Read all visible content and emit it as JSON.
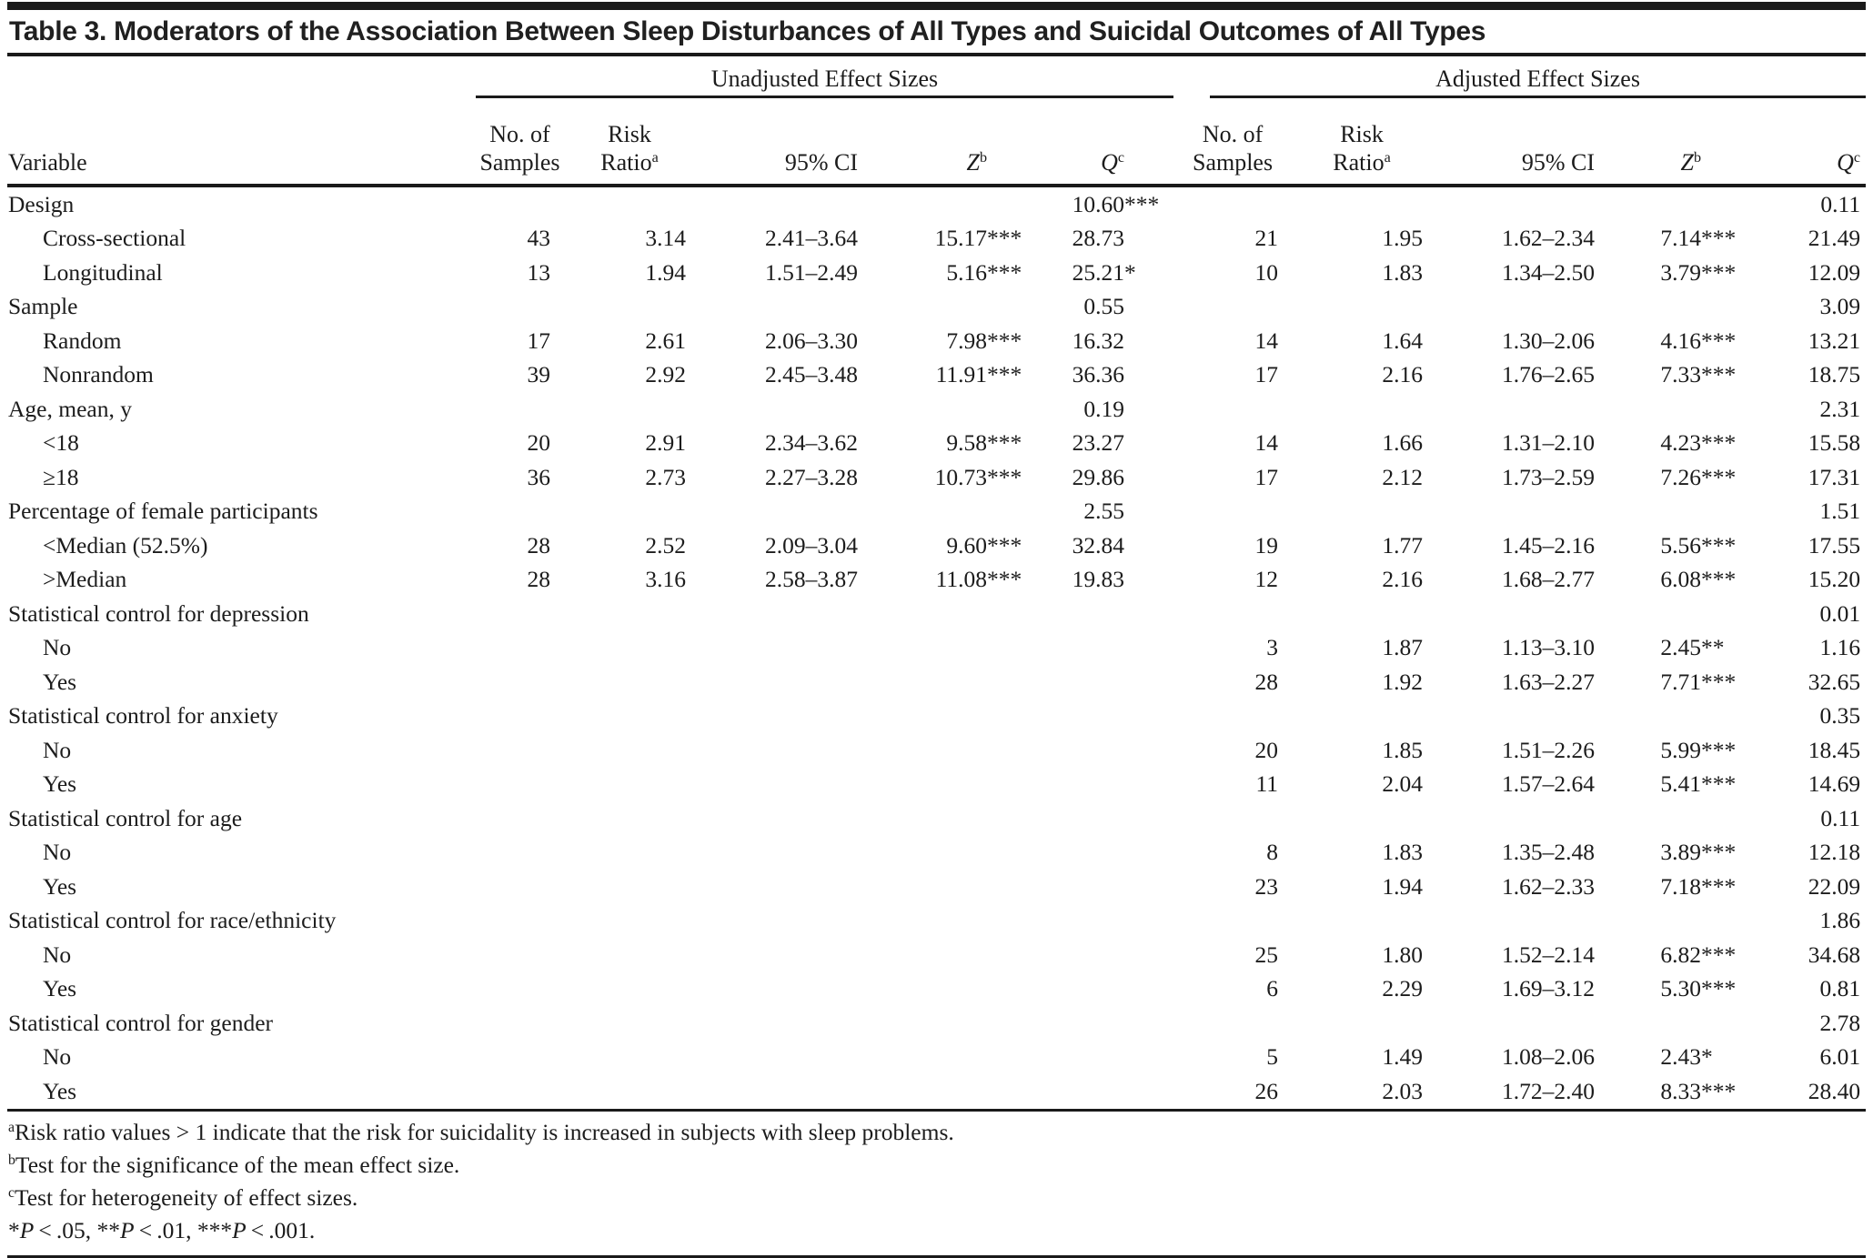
{
  "title": "Table 3. Moderators of the Association Between Sleep Disturbances of All Types and Suicidal Outcomes of All Types",
  "groups": {
    "unadjusted": "Unadjusted Effect Sizes",
    "adjusted": "Adjusted Effect Sizes"
  },
  "columns": {
    "variable": "Variable",
    "samples_line1": "No. of",
    "samples_line2": "Samples",
    "risk_line1": "Risk",
    "risk_line2": "Ratio",
    "risk_sup": "a",
    "ci": "95% CI",
    "z": "Z",
    "z_sup": "b",
    "q": "Q",
    "q_sup": "c"
  },
  "rows": [
    {
      "label": "Design",
      "indent": false,
      "u": {
        "q": "10.60",
        "qs": "***"
      },
      "a": {
        "q": "0.11"
      }
    },
    {
      "label": "Cross-sectional",
      "indent": true,
      "u": {
        "n": "43",
        "rr": "3.14",
        "ci": "2.41–3.64",
        "z": "15.17",
        "zs": "***",
        "q": "28.73"
      },
      "a": {
        "n": "21",
        "rr": "1.95",
        "ci": "1.62–2.34",
        "z": "7.14",
        "zs": "***",
        "q": "21.49"
      }
    },
    {
      "label": "Longitudinal",
      "indent": true,
      "u": {
        "n": "13",
        "rr": "1.94",
        "ci": "1.51–2.49",
        "z": "5.16",
        "zs": "***",
        "q": "25.21",
        "qs": "*"
      },
      "a": {
        "n": "10",
        "rr": "1.83",
        "ci": "1.34–2.50",
        "z": "3.79",
        "zs": "***",
        "q": "12.09"
      }
    },
    {
      "label": "Sample",
      "indent": false,
      "u": {
        "q": "0.55"
      },
      "a": {
        "q": "3.09"
      }
    },
    {
      "label": "Random",
      "indent": true,
      "u": {
        "n": "17",
        "rr": "2.61",
        "ci": "2.06–3.30",
        "z": "7.98",
        "zs": "***",
        "q": "16.32"
      },
      "a": {
        "n": "14",
        "rr": "1.64",
        "ci": "1.30–2.06",
        "z": "4.16",
        "zs": "***",
        "q": "13.21"
      }
    },
    {
      "label": "Nonrandom",
      "indent": true,
      "u": {
        "n": "39",
        "rr": "2.92",
        "ci": "2.45–3.48",
        "z": "11.91",
        "zs": "***",
        "q": "36.36"
      },
      "a": {
        "n": "17",
        "rr": "2.16",
        "ci": "1.76–2.65",
        "z": "7.33",
        "zs": "***",
        "q": "18.75"
      }
    },
    {
      "label": "Age, mean, y",
      "indent": false,
      "u": {
        "q": "0.19"
      },
      "a": {
        "q": "2.31"
      }
    },
    {
      "label": "<18",
      "indent": true,
      "u": {
        "n": "20",
        "rr": "2.91",
        "ci": "2.34–3.62",
        "z": "9.58",
        "zs": "***",
        "q": "23.27"
      },
      "a": {
        "n": "14",
        "rr": "1.66",
        "ci": "1.31–2.10",
        "z": "4.23",
        "zs": "***",
        "q": "15.58"
      }
    },
    {
      "label": "≥18",
      "indent": true,
      "u": {
        "n": "36",
        "rr": "2.73",
        "ci": "2.27–3.28",
        "z": "10.73",
        "zs": "***",
        "q": "29.86"
      },
      "a": {
        "n": "17",
        "rr": "2.12",
        "ci": "1.73–2.59",
        "z": "7.26",
        "zs": "***",
        "q": "17.31"
      }
    },
    {
      "label": "Percentage of female participants",
      "indent": false,
      "u": {
        "q": "2.55"
      },
      "a": {
        "q": "1.51"
      }
    },
    {
      "label": "<Median (52.5%)",
      "indent": true,
      "u": {
        "n": "28",
        "rr": "2.52",
        "ci": "2.09–3.04",
        "z": "9.60",
        "zs": "***",
        "q": "32.84"
      },
      "a": {
        "n": "19",
        "rr": "1.77",
        "ci": "1.45–2.16",
        "z": "5.56",
        "zs": "***",
        "q": "17.55"
      }
    },
    {
      "label": ">Median",
      "indent": true,
      "u": {
        "n": "28",
        "rr": "3.16",
        "ci": "2.58–3.87",
        "z": "11.08",
        "zs": "***",
        "q": "19.83"
      },
      "a": {
        "n": "12",
        "rr": "2.16",
        "ci": "1.68–2.77",
        "z": "6.08",
        "zs": "***",
        "q": "15.20"
      }
    },
    {
      "label": "Statistical control for depression",
      "indent": false,
      "u": {},
      "a": {
        "q": "0.01"
      }
    },
    {
      "label": "No",
      "indent": true,
      "u": {},
      "a": {
        "n": "3",
        "rr": "1.87",
        "ci": "1.13–3.10",
        "z": "2.45",
        "zs": "**",
        "q": "1.16"
      }
    },
    {
      "label": "Yes",
      "indent": true,
      "u": {},
      "a": {
        "n": "28",
        "rr": "1.92",
        "ci": "1.63–2.27",
        "z": "7.71",
        "zs": "***",
        "q": "32.65"
      }
    },
    {
      "label": "Statistical control for anxiety",
      "indent": false,
      "u": {},
      "a": {
        "q": "0.35"
      }
    },
    {
      "label": "No",
      "indent": true,
      "u": {},
      "a": {
        "n": "20",
        "rr": "1.85",
        "ci": "1.51–2.26",
        "z": "5.99",
        "zs": "***",
        "q": "18.45"
      }
    },
    {
      "label": "Yes",
      "indent": true,
      "u": {},
      "a": {
        "n": "11",
        "rr": "2.04",
        "ci": "1.57–2.64",
        "z": "5.41",
        "zs": "***",
        "q": "14.69"
      }
    },
    {
      "label": "Statistical control for age",
      "indent": false,
      "u": {},
      "a": {
        "q": "0.11"
      }
    },
    {
      "label": "No",
      "indent": true,
      "u": {},
      "a": {
        "n": "8",
        "rr": "1.83",
        "ci": "1.35–2.48",
        "z": "3.89",
        "zs": "***",
        "q": "12.18"
      }
    },
    {
      "label": "Yes",
      "indent": true,
      "u": {},
      "a": {
        "n": "23",
        "rr": "1.94",
        "ci": "1.62–2.33",
        "z": "7.18",
        "zs": "***",
        "q": "22.09"
      }
    },
    {
      "label": "Statistical control for race/ethnicity",
      "indent": false,
      "u": {},
      "a": {
        "q": "1.86"
      }
    },
    {
      "label": "No",
      "indent": true,
      "u": {},
      "a": {
        "n": "25",
        "rr": "1.80",
        "ci": "1.52–2.14",
        "z": "6.82",
        "zs": "***",
        "q": "34.68"
      }
    },
    {
      "label": "Yes",
      "indent": true,
      "u": {},
      "a": {
        "n": "6",
        "rr": "2.29",
        "ci": "1.69–3.12",
        "z": "5.30",
        "zs": "***",
        "q": "0.81"
      }
    },
    {
      "label": "Statistical control for gender",
      "indent": false,
      "u": {},
      "a": {
        "q": "2.78"
      }
    },
    {
      "label": "No",
      "indent": true,
      "u": {},
      "a": {
        "n": "5",
        "rr": "1.49",
        "ci": "1.08–2.06",
        "z": "2.43",
        "zs": "*",
        "q": "6.01"
      }
    },
    {
      "label": "Yes",
      "indent": true,
      "u": {},
      "a": {
        "n": "26",
        "rr": "2.03",
        "ci": "1.72–2.40",
        "z": "8.33",
        "zs": "***",
        "q": "28.40"
      }
    }
  ],
  "footnotes": [
    {
      "sup": "a",
      "text": "Risk ratio values > 1 indicate that the risk for suicidality is increased in subjects with sleep problems."
    },
    {
      "sup": "b",
      "text": "Test for the significance of the mean effect size."
    },
    {
      "sup": "c",
      "text": "Test for heterogeneity of effect sizes."
    }
  ],
  "significance": {
    "variable": "P",
    "operator": "<",
    "levels": [
      {
        "stars": "*",
        "threshold": ".05"
      },
      {
        "stars": "**",
        "threshold": ".01"
      },
      {
        "stars": "***",
        "threshold": ".001"
      }
    ]
  }
}
